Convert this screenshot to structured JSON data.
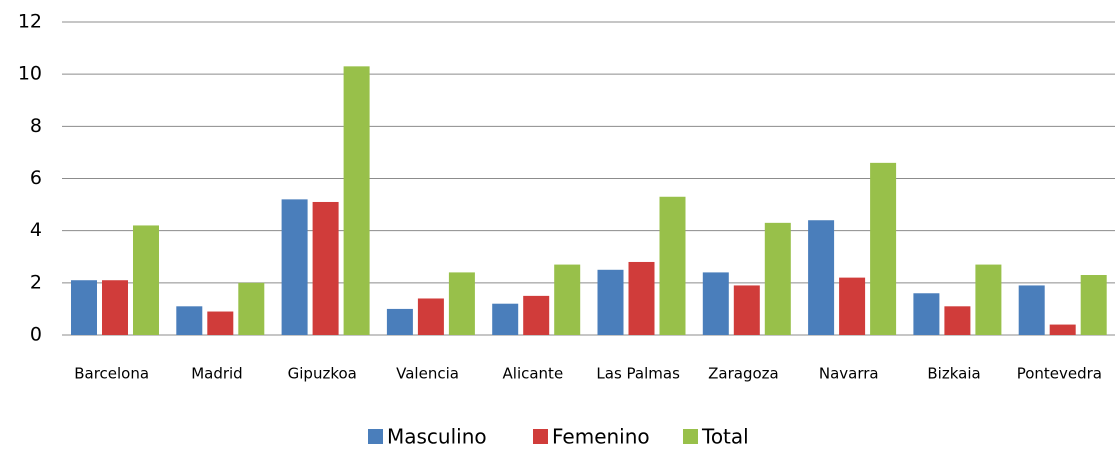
{
  "chart_data": {
    "type": "bar",
    "categories": [
      "Barcelona",
      "Madrid",
      "Gipuzkoa",
      "Valencia",
      "Alicante",
      "Las Palmas",
      "Zaragoza",
      "Navarra",
      "Bizkaia",
      "Pontevedra"
    ],
    "series": [
      {
        "name": "Masculino",
        "color": "#4a7ebb",
        "values": [
          2.1,
          1.1,
          5.2,
          1.0,
          1.2,
          2.5,
          2.4,
          4.4,
          1.6,
          1.9
        ]
      },
      {
        "name": "Femenino",
        "color": "#d03c3a",
        "values": [
          2.1,
          0.9,
          5.1,
          1.4,
          1.5,
          2.8,
          1.9,
          2.2,
          1.1,
          0.4
        ]
      },
      {
        "name": "Total",
        "color": "#98c04a",
        "values": [
          4.2,
          2.0,
          10.3,
          2.4,
          2.7,
          5.3,
          4.3,
          6.6,
          2.7,
          2.3
        ]
      }
    ],
    "ylim": [
      0,
      12
    ],
    "yticks": [
      0,
      2,
      4,
      6,
      8,
      10,
      12
    ],
    "grid": true,
    "legend": "bottom"
  }
}
